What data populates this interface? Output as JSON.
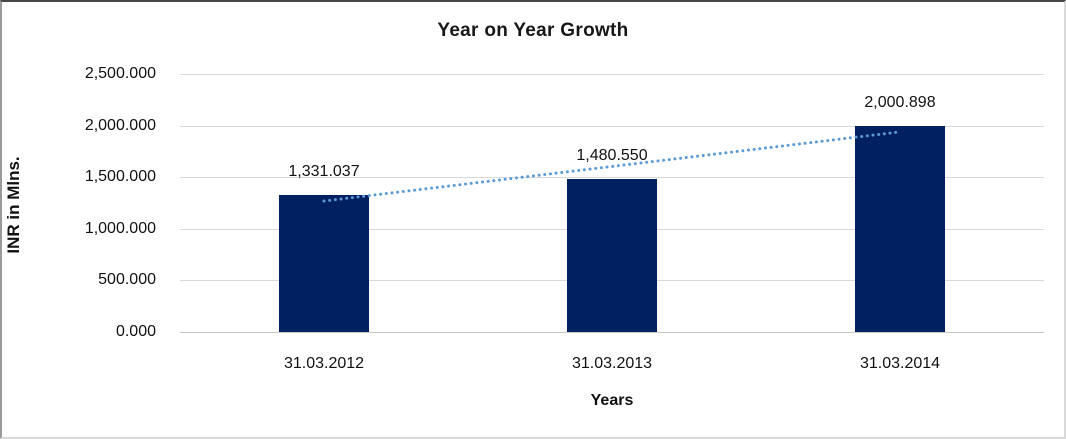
{
  "chart": {
    "title": "Year on Year Growth",
    "xlabel": "Years",
    "ylabel": "INR in Mlns."
  },
  "chart_data": {
    "type": "bar",
    "title": "Year on Year Growth",
    "xlabel": "Years",
    "ylabel": "INR in Mlns.",
    "categories": [
      "31.03.2012",
      "31.03.2013",
      "31.03.2014"
    ],
    "values": [
      1331.037,
      1480.55,
      2000.898
    ],
    "data_labels": [
      "1,331.037",
      "1,480.550",
      "2,000.898"
    ],
    "ylim": [
      0,
      2500
    ],
    "yticks": [
      0,
      500,
      1000,
      1500,
      2000,
      2500
    ],
    "ytick_labels": [
      "0.000",
      "500.000",
      "1,000.000",
      "1,500.000",
      "2,000.000",
      "2,500.000"
    ],
    "grid": true,
    "legend": "none",
    "bar_color": "#002060",
    "grid_color": "#d9d9d9",
    "trendline": {
      "type": "linear",
      "line_style": "dotted",
      "color": "#5b9bd5"
    }
  }
}
